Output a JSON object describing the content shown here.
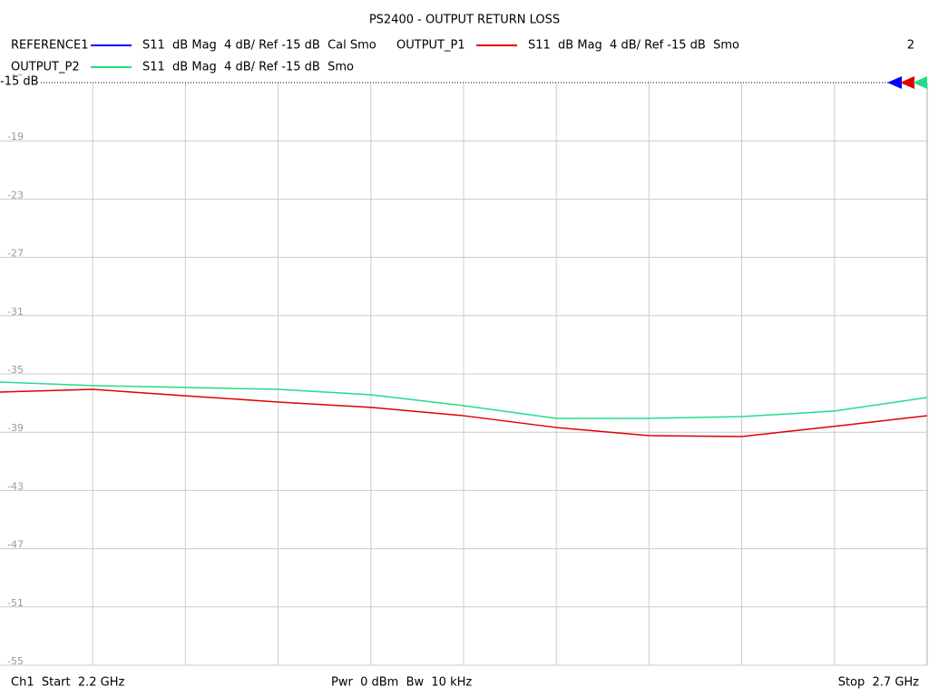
{
  "chart_data": {
    "type": "line",
    "title": "PS2400 - OUTPUT RETURN LOSS",
    "channel_number": "2",
    "ref_label": "-15 dB",
    "footer": {
      "start": "Ch1  Start  2.2 GHz",
      "middle": "Pwr  0 dBm  Bw  10 kHz",
      "stop": "Stop  2.7 GHz"
    },
    "x": [
      2.2,
      2.25,
      2.3,
      2.35,
      2.4,
      2.45,
      2.5,
      2.55,
      2.6,
      2.65,
      2.7
    ],
    "xlim": [
      2.2,
      2.7
    ],
    "xticks": [
      2.25,
      2.3,
      2.35,
      2.4,
      2.45,
      2.5,
      2.55,
      2.6,
      2.65
    ],
    "ylim": [
      -55,
      -15
    ],
    "yticks": [
      -15,
      -19,
      -23,
      -27,
      -31,
      -35,
      -39,
      -43,
      -47,
      -51,
      -55
    ],
    "grid": true,
    "series": [
      {
        "name": "REFERENCE1",
        "description": "S11  dB Mag  4 dB/ Ref -15 dB  Cal Smo",
        "color": "#0000ff",
        "values": [
          null,
          null,
          null,
          null,
          null,
          null,
          null,
          null,
          null,
          null,
          null
        ]
      },
      {
        "name": "OUTPUT_P1",
        "description": "S11  dB Mag  4 dB/ Ref -15 dB  Smo",
        "color": "#dd0000",
        "values": [
          -36.25,
          -36.06,
          -36.5,
          -36.93,
          -37.3,
          -37.87,
          -38.68,
          -39.24,
          -39.3,
          -38.6,
          -37.87
        ]
      },
      {
        "name": "OUTPUT_P2",
        "description": "S11  dB Mag  4 dB/ Ref -15 dB  Smo",
        "color": "#22dd88",
        "values": [
          -35.56,
          -35.8,
          -35.93,
          -36.06,
          -36.43,
          -37.18,
          -38.05,
          -38.05,
          -37.93,
          -37.55,
          -36.62
        ]
      }
    ]
  }
}
